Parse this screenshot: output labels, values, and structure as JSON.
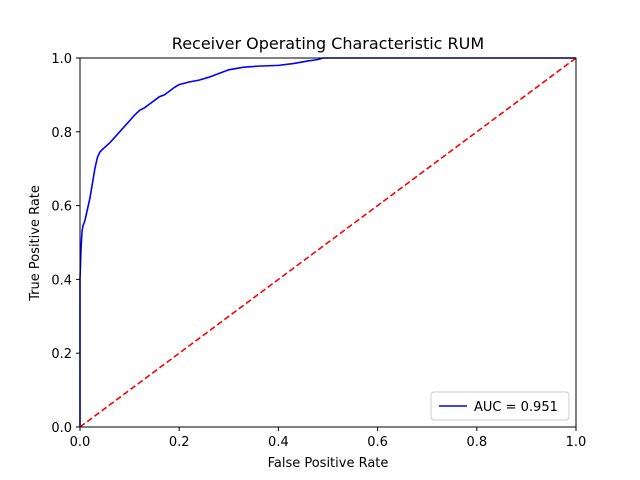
{
  "chart_data": {
    "type": "line",
    "title": "Receiver Operating Characteristic RUM",
    "xlabel": "False Positive Rate",
    "ylabel": "True Positive Rate",
    "xlim": [
      0,
      1
    ],
    "ylim": [
      0,
      1
    ],
    "xticks": [
      "0.0",
      "0.2",
      "0.4",
      "0.6",
      "0.8",
      "1.0"
    ],
    "yticks": [
      "0.0",
      "0.2",
      "0.4",
      "0.6",
      "0.8",
      "1.0"
    ],
    "grid": false,
    "legend_position": "bottom-right",
    "series": [
      {
        "name": "AUC = 0.951",
        "color": "#0000ff",
        "style": "solid",
        "x": [
          0.0,
          0.0,
          0.002,
          0.004,
          0.006,
          0.01,
          0.015,
          0.02,
          0.025,
          0.03,
          0.035,
          0.04,
          0.045,
          0.05,
          0.06,
          0.07,
          0.08,
          0.09,
          0.1,
          0.11,
          0.12,
          0.13,
          0.14,
          0.15,
          0.16,
          0.17,
          0.18,
          0.19,
          0.2,
          0.22,
          0.24,
          0.26,
          0.28,
          0.3,
          0.33,
          0.36,
          0.4,
          0.43,
          0.46,
          0.48,
          0.49,
          1.0
        ],
        "y": [
          0.0,
          0.4,
          0.48,
          0.53,
          0.545,
          0.56,
          0.59,
          0.62,
          0.66,
          0.7,
          0.73,
          0.745,
          0.752,
          0.758,
          0.77,
          0.785,
          0.8,
          0.815,
          0.83,
          0.845,
          0.858,
          0.865,
          0.875,
          0.885,
          0.895,
          0.9,
          0.91,
          0.92,
          0.928,
          0.935,
          0.94,
          0.948,
          0.958,
          0.968,
          0.975,
          0.978,
          0.98,
          0.985,
          0.992,
          0.996,
          1.0,
          1.0
        ]
      },
      {
        "name": "",
        "color": "#ff0000",
        "style": "dashed",
        "x": [
          0,
          1
        ],
        "y": [
          0,
          1
        ]
      }
    ]
  }
}
